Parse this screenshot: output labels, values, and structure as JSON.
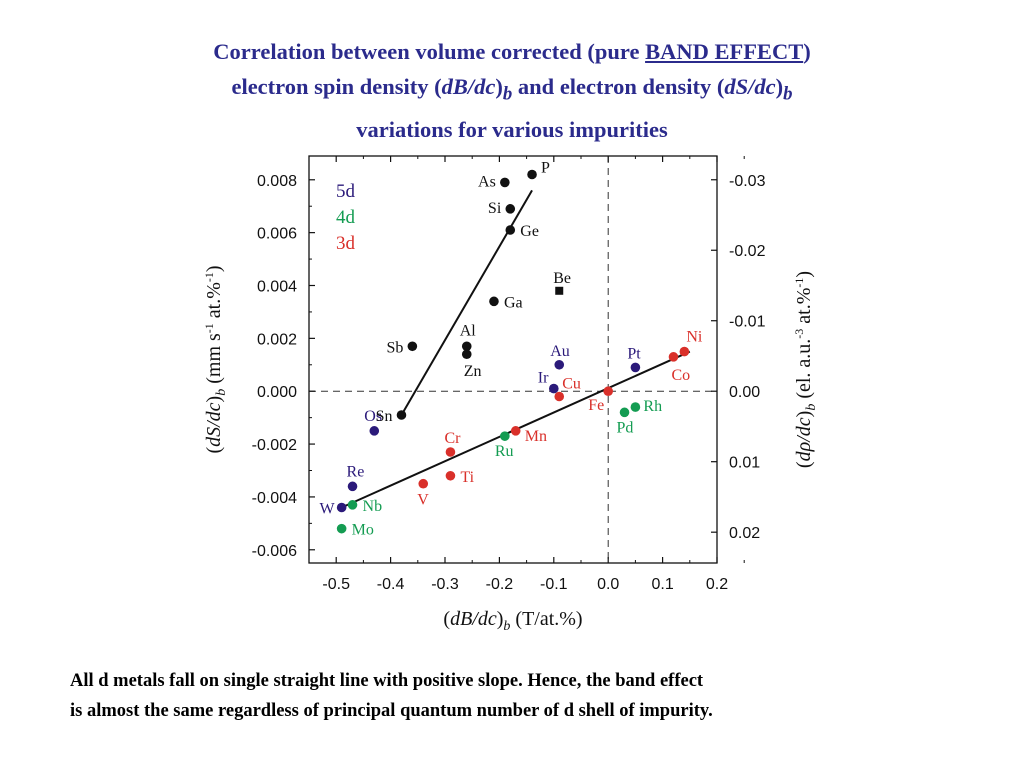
{
  "title": {
    "line1_pre": "Correlation between volume corrected (pure ",
    "line1_underlined": "BAND EFFECT",
    "line1_post": ")",
    "line2_pre": "electron spin density (",
    "line2_var1": "dB/dc",
    "line2_sub1": "b",
    "line2_mid": " and electron density (",
    "line2_var2": "dS/dc",
    "line2_sub2": "b",
    "line3": "variations for various impurities"
  },
  "caption": {
    "line1": "All d metals fall on single straight line with positive slope. Hence, the band effect",
    "line2": "is almost the same regardless of principal quantum number of d shell of impurity."
  },
  "colors": {
    "title": "#2b2b8c",
    "5d": "#2b1a7a",
    "4d": "#149c52",
    "3d": "#d9302a",
    "sp": "#111111",
    "axis": "#111111"
  },
  "chart_data": {
    "type": "scatter",
    "xlabel": {
      "var": "dB/dc",
      "sub": "b",
      "unit": "(T/at.%)"
    },
    "ylabel": {
      "var": "dS/dc",
      "sub": "b",
      "unit_pre": "(mm s",
      "unit_sup": "-1",
      "unit_post": " at.%",
      "unit_sup2": "-1",
      "unit_end": ")"
    },
    "y2label": {
      "var": "dρ/dc",
      "sub": "b",
      "unit_pre": "(el. a.u.",
      "unit_sup": "-3",
      "unit_post": " at.%",
      "unit_sup2": "-1",
      "unit_end": ")"
    },
    "xlim": [
      -0.55,
      0.2
    ],
    "ylim": [
      -0.0065,
      0.0089
    ],
    "x_ticks": [
      "-0.5",
      "-0.4",
      "-0.3",
      "-0.2",
      "-0.1",
      "0.0",
      "0.1",
      "0.2"
    ],
    "y_ticks": [
      "0.008",
      "0.006",
      "0.004",
      "0.002",
      "0.000",
      "-0.002",
      "-0.004",
      "-0.006"
    ],
    "y2_ticks": [
      "-0.03",
      "-0.02",
      "-0.01",
      "0.00",
      "0.01",
      "0.02"
    ],
    "y2_scale": {
      "zero_at_y": 0.0,
      "units_per_y": -3.34
    },
    "legend": [
      {
        "label": "5d",
        "group": "5d"
      },
      {
        "label": "4d",
        "group": "4d"
      },
      {
        "label": "3d",
        "group": "3d"
      }
    ],
    "legend_position": "top-left",
    "dashed_zero_lines": true,
    "series": [
      {
        "name": "5d",
        "points": [
          {
            "label": "W",
            "x": -0.49,
            "y": -0.0044
          },
          {
            "label": "Re",
            "x": -0.47,
            "y": -0.0036
          },
          {
            "label": "Os",
            "x": -0.43,
            "y": -0.0015
          },
          {
            "label": "Ir",
            "x": -0.1,
            "y": 0.0001
          },
          {
            "label": "Au",
            "x": -0.09,
            "y": 0.001
          },
          {
            "label": "Pt",
            "x": 0.05,
            "y": 0.0009
          }
        ]
      },
      {
        "name": "4d",
        "points": [
          {
            "label": "Nb",
            "x": -0.47,
            "y": -0.0043
          },
          {
            "label": "Mo",
            "x": -0.49,
            "y": -0.0052
          },
          {
            "label": "Ru",
            "x": -0.19,
            "y": -0.0017
          },
          {
            "label": "Pd",
            "x": 0.03,
            "y": -0.0008
          },
          {
            "label": "Rh",
            "x": 0.05,
            "y": -0.0006
          }
        ]
      },
      {
        "name": "3d",
        "points": [
          {
            "label": "V",
            "x": -0.34,
            "y": -0.0035
          },
          {
            "label": "Ti",
            "x": -0.29,
            "y": -0.0032
          },
          {
            "label": "Cr",
            "x": -0.29,
            "y": -0.0023
          },
          {
            "label": "Mn",
            "x": -0.17,
            "y": -0.0015
          },
          {
            "label": "Cu",
            "x": -0.09,
            "y": -0.0002
          },
          {
            "label": "Fe",
            "x": 0.0,
            "y": 0.0
          },
          {
            "label": "Co",
            "x": 0.12,
            "y": 0.0013
          },
          {
            "label": "Ni",
            "x": 0.14,
            "y": 0.0015
          }
        ]
      },
      {
        "name": "sp",
        "points": [
          {
            "label": "P",
            "x": -0.14,
            "y": 0.0082
          },
          {
            "label": "As",
            "x": -0.19,
            "y": 0.0079
          },
          {
            "label": "Si",
            "x": -0.18,
            "y": 0.0069
          },
          {
            "label": "Ge",
            "x": -0.18,
            "y": 0.0061
          },
          {
            "label": "Ga",
            "x": -0.21,
            "y": 0.0034
          },
          {
            "label": "Al",
            "x": -0.26,
            "y": 0.0017
          },
          {
            "label": "Zn",
            "x": -0.26,
            "y": 0.0014
          },
          {
            "label": "Sb",
            "x": -0.36,
            "y": 0.0017
          },
          {
            "label": "Sn",
            "x": -0.38,
            "y": -0.0009
          }
        ]
      },
      {
        "name": "Be",
        "marker": "square",
        "points": [
          {
            "label": "Be",
            "x": -0.09,
            "y": 0.0038
          }
        ]
      }
    ],
    "fit_lines": [
      {
        "group": "sp",
        "from": {
          "x": -0.38,
          "y": -0.0009
        },
        "to": {
          "x": -0.14,
          "y": 0.0076
        }
      },
      {
        "group": "d",
        "from": {
          "x": -0.49,
          "y": -0.0044
        },
        "to": {
          "x": 0.15,
          "y": 0.0015
        }
      }
    ]
  }
}
